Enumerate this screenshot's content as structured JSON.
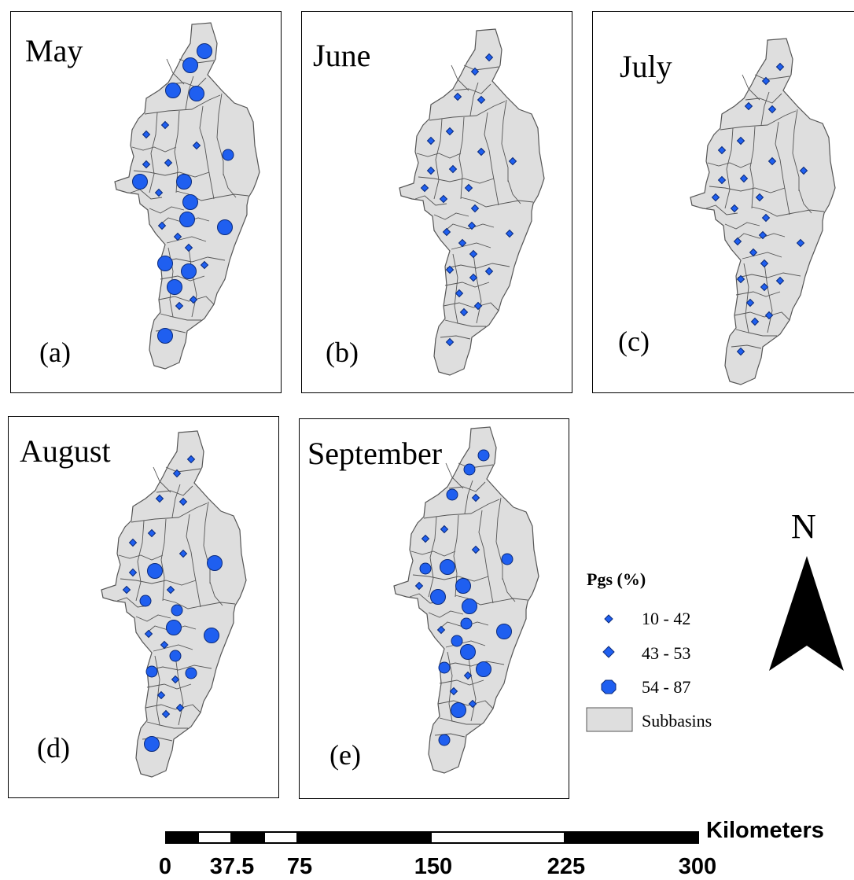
{
  "panels": [
    {
      "month": "May",
      "letter": "(a)",
      "classes": [
        3,
        3,
        3,
        3,
        1,
        1,
        1,
        2,
        1,
        1,
        3,
        3,
        1,
        3,
        3,
        3,
        1,
        1,
        3,
        1,
        3,
        1,
        1,
        3,
        1,
        3
      ]
    },
    {
      "month": "June",
      "letter": "(b)",
      "classes": [
        1,
        1,
        1,
        1,
        1,
        1,
        1,
        1,
        1,
        1,
        1,
        1,
        1,
        1,
        1,
        1,
        1,
        1,
        1,
        1,
        1,
        1,
        1,
        1,
        1,
        1
      ]
    },
    {
      "month": "July",
      "letter": "(c)",
      "classes": [
        1,
        1,
        1,
        1,
        1,
        1,
        1,
        1,
        1,
        1,
        1,
        1,
        1,
        1,
        1,
        1,
        1,
        1,
        1,
        1,
        1,
        1,
        1,
        1,
        1,
        1
      ]
    },
    {
      "month": "August",
      "letter": "(d)",
      "classes": [
        1,
        1,
        1,
        1,
        1,
        1,
        1,
        3,
        1,
        3,
        1,
        1,
        2,
        2,
        3,
        3,
        1,
        1,
        2,
        2,
        1,
        1,
        1,
        3,
        2,
        1
      ]
    },
    {
      "month": "September",
      "letter": "(e)",
      "classes": [
        2,
        2,
        2,
        1,
        1,
        1,
        1,
        2,
        2,
        3,
        1,
        3,
        3,
        3,
        3,
        2,
        1,
        2,
        2,
        3,
        1,
        3,
        1,
        2,
        3,
        1
      ]
    }
  ],
  "legend": {
    "title": "Pgs (%)",
    "classes": [
      {
        "label": "10 - 42"
      },
      {
        "label": "43 - 53"
      },
      {
        "label": "54 - 87"
      }
    ],
    "subbasins_label": "Subbasins"
  },
  "north_arrow": {
    "label": "N"
  },
  "scale_bar": {
    "unit": "Kilometers",
    "ticks": [
      "0",
      "37.5",
      "75",
      "150",
      "225",
      "300"
    ]
  },
  "colors": {
    "point_fill": "#1f5ff0",
    "point_stroke": "#0b2a7a",
    "subbasin_fill": "#dedede",
    "subbasin_stroke": "#555555"
  }
}
